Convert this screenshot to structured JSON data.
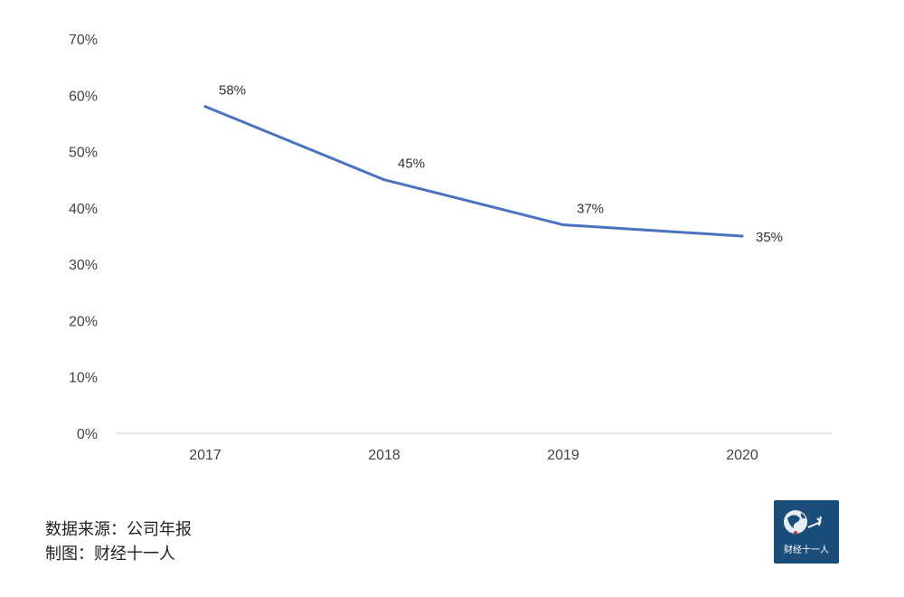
{
  "chart_data": {
    "type": "line",
    "categories": [
      "2017",
      "2018",
      "2019",
      "2020"
    ],
    "series": [
      {
        "values": [
          58,
          45,
          37,
          35
        ],
        "labels": [
          "58%",
          "45%",
          "37%",
          "35%"
        ],
        "color": "#4a73c1"
      }
    ],
    "ylim": [
      0,
      70
    ],
    "yticks": [
      "0%",
      "10%",
      "20%",
      "30%",
      "40%",
      "50%",
      "60%",
      "70%"
    ],
    "grid": false
  },
  "footer": {
    "source": "数据来源：公司年报",
    "credit": "制图：财经十一人"
  },
  "logo": {
    "text": "财经十一人",
    "color": "#1b4d7a"
  }
}
